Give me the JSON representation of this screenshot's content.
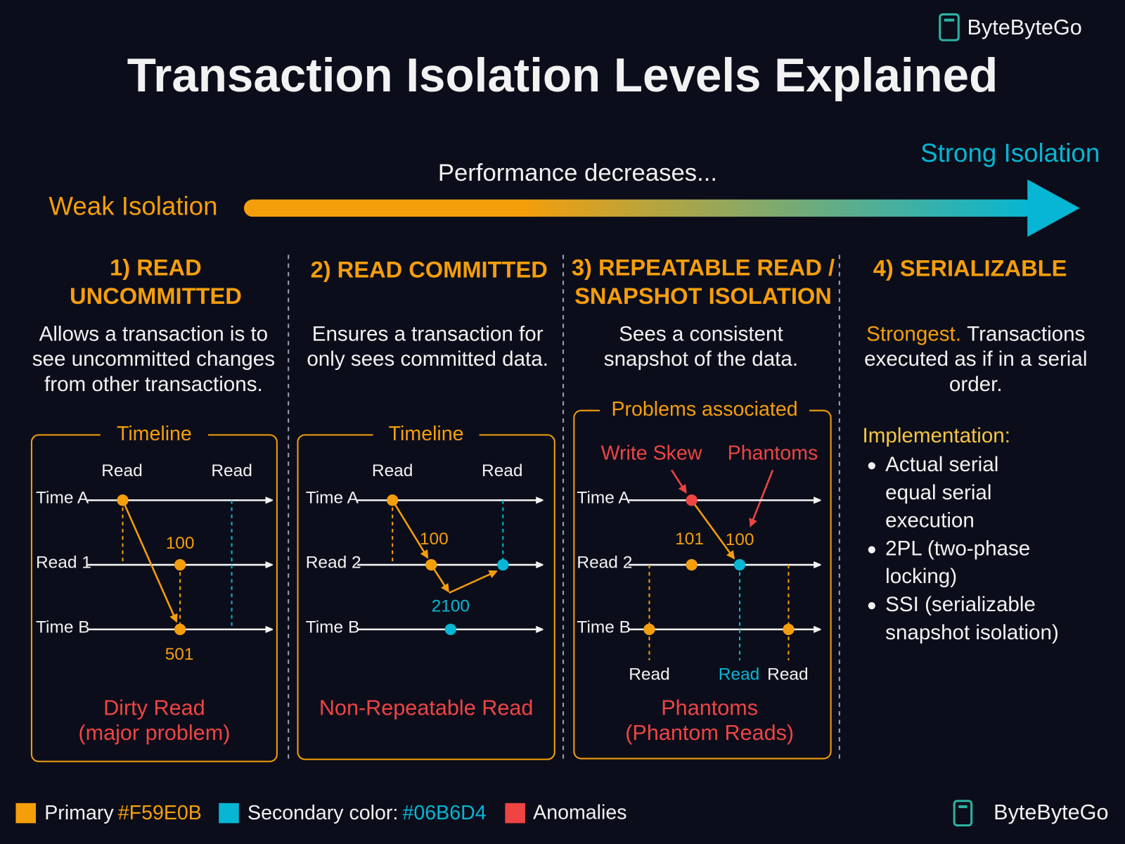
{
  "brand": "ByteByteGo",
  "title": "Transaction Isolation Levels Explained",
  "scale": {
    "weak": "Weak Isolation",
    "caption": "Performance decreases...",
    "strong": "Strong Isolation"
  },
  "levels": [
    {
      "heading": [
        "1) READ",
        "UNCOMMITTED"
      ],
      "description": [
        "Allows a transaction is to",
        "see uncommitted changes",
        "from other transactions."
      ],
      "panel": {
        "label": "Timeline",
        "top_labels": [
          "Read",
          "Read"
        ],
        "rows": [
          "Time A",
          "Read 1",
          "Time B"
        ],
        "values": [
          "100",
          "501"
        ],
        "anomaly": [
          "Dirty Read",
          "(major problem)"
        ]
      }
    },
    {
      "heading": [
        "2) READ COMMITTED"
      ],
      "description": [
        "Ensures a transaction for",
        "only sees committed data."
      ],
      "panel": {
        "label": "Timeline",
        "top_labels": [
          "Read",
          "Read"
        ],
        "rows": [
          "Time A",
          "Read 2",
          "Time B"
        ],
        "values": [
          "100",
          "2100"
        ],
        "anomaly": [
          "Non-Repeatable Read"
        ]
      }
    },
    {
      "heading": [
        "3) REPEATABLE READ /",
        "SNAPSHOT ISOLATION"
      ],
      "description": [
        "Sees a consistent",
        "snapshot of the data."
      ],
      "panel": {
        "label": "Problems associated",
        "top_labels": [
          "Write Skew",
          "Phantoms"
        ],
        "rows": [
          "Time A",
          "Read 2",
          "Time B"
        ],
        "values": [
          "101",
          "100"
        ],
        "bottom_labels": [
          "Read",
          "Read",
          "Read"
        ],
        "anomaly": [
          "Phantoms",
          "(Phantom Reads)"
        ]
      }
    },
    {
      "heading": [
        "4) SERIALIZABLE"
      ],
      "description_lead": "Strongest.",
      "description": [
        "Transactions",
        "executed as if in a serial",
        "order."
      ],
      "implementation": {
        "label": "Implementation:",
        "items": [
          [
            "Actual serial",
            "equal serial",
            "execution"
          ],
          [
            "2PL (two-phase",
            "locking)"
          ],
          [
            "SSI (serializable",
            "snapshot isolation)"
          ]
        ]
      }
    }
  ],
  "legend": [
    {
      "label": "Primary",
      "code": "#F59E0B"
    },
    {
      "label": "Secondary color:",
      "code": "#06B6D4"
    },
    {
      "label": "Anomalies"
    }
  ],
  "footer_brand": "ByteByteGo"
}
